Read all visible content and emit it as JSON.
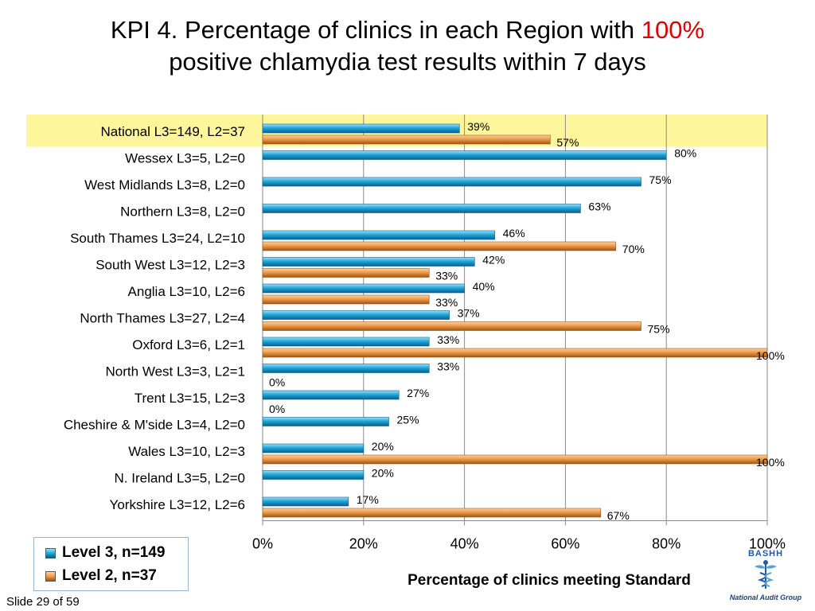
{
  "title": {
    "prefix": "KPI  4. Percentage of clinics in each Region with ",
    "highlight": "100%",
    "line2": "positive chlamydia test results within 7 days"
  },
  "colors": {
    "level3": "#1fa6d9",
    "level2": "#ef9a45",
    "highlight_band": "#fff59a",
    "title_highlight": "#e00000"
  },
  "chart_data": {
    "type": "bar",
    "orientation": "horizontal",
    "xlabel": "Percentage of clinics meeting Standard",
    "xlim": [
      0,
      100
    ],
    "xticks": [
      "0%",
      "20%",
      "40%",
      "60%",
      "80%",
      "100%"
    ],
    "grid": true,
    "legend_position": "bottom-left",
    "highlighted_category": "National L3=149, L2=37",
    "categories": [
      "National L3=149, L2=37",
      "Wessex L3=5, L2=0",
      "West Midlands L3=8, L2=0",
      "Northern L3=8, L2=0",
      "South Thames L3=24, L2=10",
      "South West L3=12, L2=3",
      "Anglia L3=10, L2=6",
      "North Thames L3=27, L2=4",
      "Oxford L3=6, L2=1",
      "North West L3=3, L2=1",
      "Trent L3=15, L2=3",
      "Cheshire & M'side L3=4, L2=0",
      "Wales L3=10, L2=3",
      "N. Ireland L3=5, L2=0",
      "Yorkshire L3=12, L2=6"
    ],
    "series": [
      {
        "name": "Level 3, n=149",
        "values": [
          39,
          80,
          75,
          63,
          46,
          42,
          40,
          37,
          33,
          33,
          27,
          25,
          20,
          20,
          17
        ],
        "labels": [
          "39%",
          "80%",
          "75%",
          "63%",
          "46%",
          "42%",
          "40%",
          "37%",
          "33%",
          "33%",
          "27%",
          "25%",
          "20%",
          "20%",
          "17%"
        ]
      },
      {
        "name": "Level 2, n=37",
        "values": [
          57,
          null,
          null,
          null,
          70,
          33,
          33,
          75,
          100,
          0,
          0,
          null,
          100,
          null,
          67
        ],
        "labels": [
          "57%",
          null,
          null,
          null,
          "70%",
          "33%",
          "33%",
          "75%",
          "100%",
          "0%",
          "0%",
          null,
          "100%",
          null,
          "67%"
        ]
      }
    ]
  },
  "slide_number": "Slide 29 of 59",
  "logo": {
    "name": "BASHH",
    "caption": "National Audit Group",
    "icon": "caduceus-icon"
  }
}
